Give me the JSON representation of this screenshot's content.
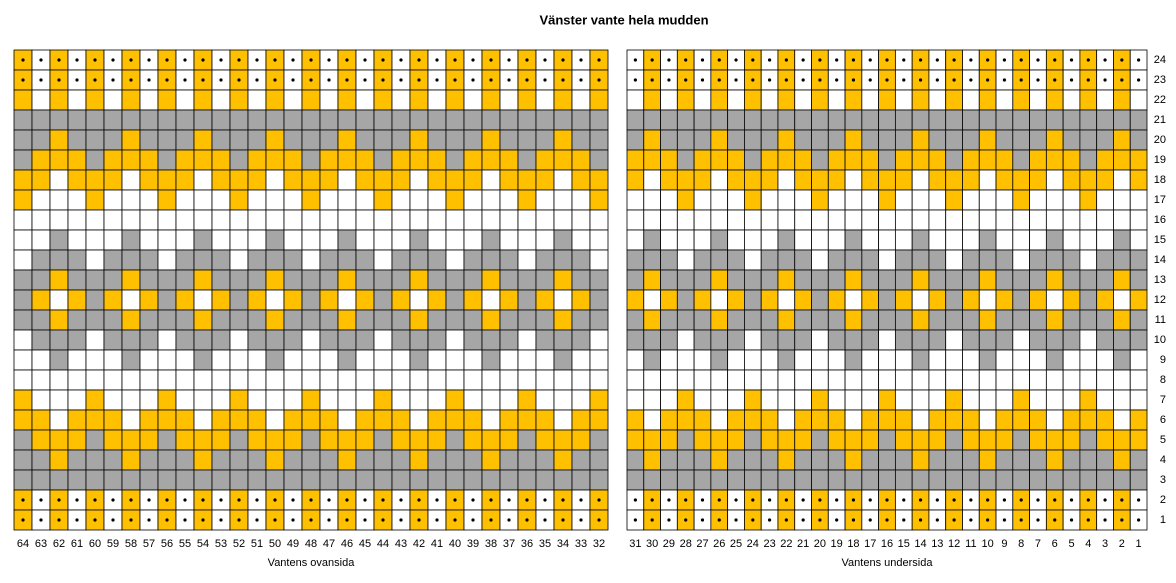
{
  "title": "Vänster vante hela mudden",
  "panels": [
    {
      "label": "Vantens ovansida",
      "columns": [
        64,
        63,
        62,
        61,
        60,
        59,
        58,
        57,
        56,
        55,
        54,
        53,
        52,
        51,
        50,
        49,
        48,
        47,
        46,
        45,
        44,
        43,
        42,
        41,
        40,
        39,
        38,
        37,
        36,
        35,
        34,
        33,
        32
      ]
    },
    {
      "label": "Vantens undersida",
      "columns": [
        31,
        30,
        29,
        28,
        27,
        26,
        25,
        24,
        23,
        22,
        21,
        20,
        19,
        18,
        17,
        16,
        15,
        14,
        13,
        12,
        11,
        10,
        9,
        8,
        7,
        6,
        5,
        4,
        3,
        2,
        1
      ]
    }
  ],
  "rows": [
    24,
    23,
    22,
    21,
    20,
    19,
    18,
    17,
    16,
    15,
    14,
    13,
    12,
    11,
    10,
    9,
    8,
    7,
    6,
    5,
    4,
    3,
    2,
    1
  ]
}
